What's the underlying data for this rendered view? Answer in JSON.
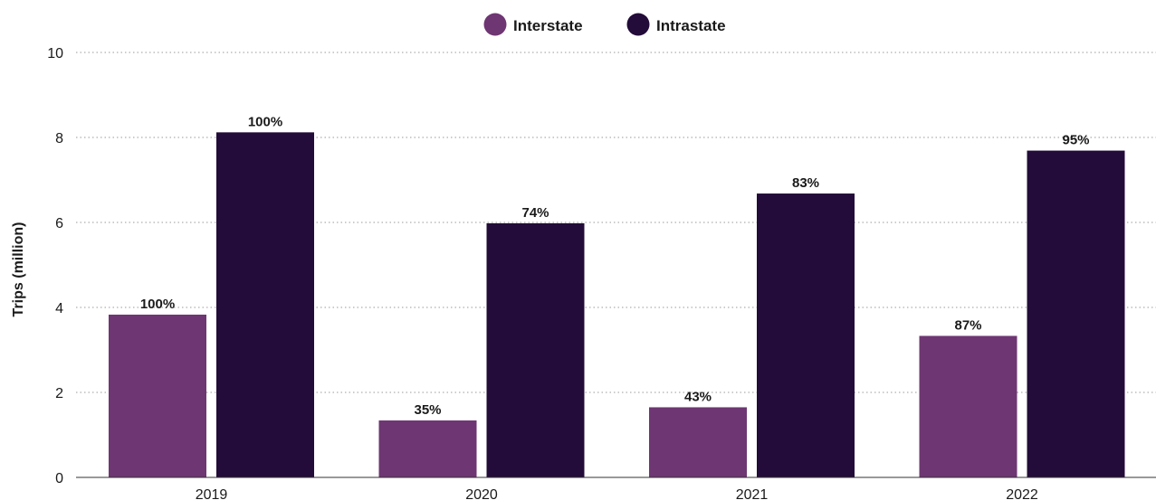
{
  "chart_data": {
    "type": "bar",
    "ylabel": "Trips (million)",
    "xlabel": "",
    "categories": [
      "2019",
      "2020",
      "2021",
      "2022"
    ],
    "ylim": [
      0,
      10
    ],
    "yticks": [
      0,
      2,
      4,
      6,
      8,
      10
    ],
    "grid": true,
    "legend_position": "top-center",
    "series": [
      {
        "name": "Interstate",
        "color": "#6e3672",
        "values": [
          3.83,
          1.34,
          1.65,
          3.33
        ],
        "labels": [
          "100%",
          "35%",
          "43%",
          "87%"
        ]
      },
      {
        "name": "Intrastate",
        "color": "#230c39",
        "values": [
          8.12,
          5.98,
          6.68,
          7.69
        ],
        "labels": [
          "100%",
          "74%",
          "83%",
          "95%"
        ]
      }
    ]
  }
}
